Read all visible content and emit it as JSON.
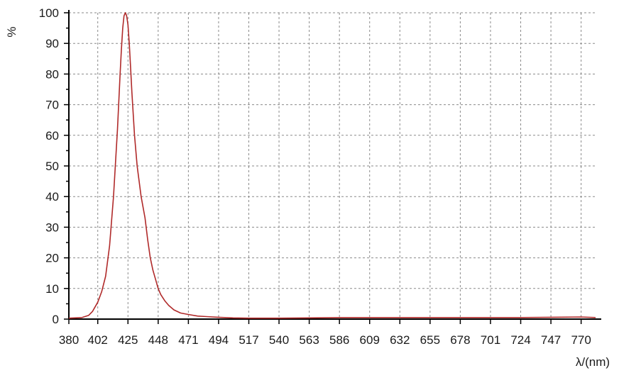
{
  "chart_data": {
    "type": "line",
    "title": "",
    "xlabel": "λ/(nm)",
    "ylabel": "%",
    "xlim": [
      380,
      781
    ],
    "ylim": [
      0,
      100
    ],
    "grid": true,
    "line_color": "#b02a2a",
    "x_ticks": [
      380,
      402,
      425,
      448,
      471,
      494,
      517,
      540,
      563,
      586,
      609,
      632,
      655,
      678,
      701,
      724,
      747,
      770
    ],
    "y_ticks": [
      0,
      10,
      20,
      30,
      40,
      50,
      60,
      70,
      80,
      90,
      100
    ],
    "series": [
      {
        "x": [
          380,
          390,
          395,
          398,
          400,
          402,
          405,
          408,
          411,
          414,
          417,
          419,
          420,
          421,
          422,
          423,
          424,
          425,
          426,
          427,
          428,
          430,
          432,
          435,
          438,
          440,
          442,
          444,
          446,
          448,
          450,
          453,
          456,
          460,
          465,
          471,
          478,
          485,
          494,
          505,
          517,
          530,
          540,
          563,
          586,
          609,
          632,
          655,
          678,
          701,
          724,
          747,
          770,
          781
        ],
        "y": [
          0.3,
          0.5,
          1.2,
          2.5,
          4.0,
          5.5,
          9.0,
          14.0,
          24.0,
          40.0,
          62.0,
          80.0,
          88.0,
          95.0,
          99.0,
          100.0,
          99.0,
          96.0,
          90.0,
          82.0,
          74.0,
          60.0,
          50.0,
          40.0,
          33.0,
          26.0,
          20.0,
          16.0,
          13.0,
          10.0,
          8.0,
          6.0,
          4.5,
          3.0,
          2.0,
          1.5,
          1.0,
          0.8,
          0.6,
          0.4,
          0.3,
          0.3,
          0.3,
          0.4,
          0.5,
          0.5,
          0.5,
          0.5,
          0.5,
          0.5,
          0.5,
          0.6,
          0.7,
          0.5
        ]
      }
    ]
  }
}
